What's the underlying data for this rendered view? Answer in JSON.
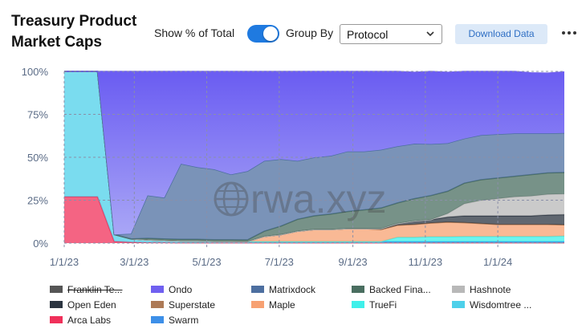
{
  "header": {
    "title": "Treasury Product Market Caps",
    "toggle_label": "Show % of Total",
    "toggle_on": true,
    "group_label": "Group By",
    "group_value": "Protocol",
    "download_label": "Download Data",
    "more_icon": "more-horizontal-icon",
    "chevron_icon": "chevron-down-icon"
  },
  "colors": {
    "accent": "#1f7ae0",
    "ondo": "#7060f0",
    "matrixdock": "#4d6fa0",
    "backed": "#4a6e60",
    "hashnote": "#b8b8b8",
    "open_eden": "#2b3440",
    "superstate": "#ad7a56",
    "maple": "#f7a172",
    "truefi": "#3ff0ea",
    "wisdomtree": "#4dd0ea",
    "arca": "#f0305a",
    "swarm": "#3d8fe8",
    "franklin": "#555555"
  },
  "chart_data": {
    "type": "area",
    "stacked": true,
    "percent": true,
    "x": [
      "1/1/23",
      "1/15/23",
      "1/29/23",
      "2/12/23",
      "2/26/23",
      "3/12/23",
      "3/26/23",
      "4/9/23",
      "4/23/23",
      "5/7/23",
      "5/21/23",
      "6/4/23",
      "6/18/23",
      "7/2/23",
      "7/16/23",
      "7/30/23",
      "8/13/23",
      "8/27/23",
      "9/10/23",
      "9/24/23",
      "10/8/23",
      "10/22/23",
      "11/5/23",
      "11/19/23",
      "12/3/23",
      "12/17/23",
      "12/31/23",
      "1/14/24",
      "1/28/24",
      "2/11/24",
      "2/25/24"
    ],
    "xticks": [
      "1/1/23",
      "3/1/23",
      "5/1/23",
      "7/1/23",
      "9/1/23",
      "11/1/23",
      "1/1/24"
    ],
    "yticks": [
      "0%",
      "25%",
      "50%",
      "75%",
      "100%"
    ],
    "ylim": [
      0,
      100
    ],
    "series": [
      {
        "name": "Arca Labs",
        "key": "arca",
        "values": [
          27,
          27,
          27,
          1,
          0.5,
          0.3,
          0.3,
          0.2,
          0.2,
          0.2,
          0.2,
          0.2,
          0.2,
          0.2,
          0.2,
          0.2,
          0.2,
          0.2,
          0.2,
          0.2,
          0.2,
          0.2,
          0.2,
          0.2,
          0.2,
          0.2,
          0.2,
          0.2,
          0.2,
          0.2,
          0.2
        ]
      },
      {
        "name": "Wisdomtree ...",
        "key": "wisdomtree",
        "values": [
          73,
          73,
          73,
          4,
          2,
          1.5,
          1.2,
          1,
          1,
          0.8,
          0.8,
          0.7,
          0.7,
          0.7,
          0.7,
          0.7,
          0.7,
          0.7,
          0.7,
          0.7,
          0.7,
          0.7,
          0.7,
          0.7,
          0.7,
          0.7,
          0.7,
          0.7,
          0.7,
          0.7,
          0.7
        ]
      },
      {
        "name": "Swarm",
        "key": "swarm",
        "values": [
          0,
          0,
          0,
          0,
          0,
          0,
          0,
          0,
          0,
          0,
          0,
          0,
          0,
          0,
          0,
          0,
          0,
          0,
          0,
          0,
          0,
          0,
          0,
          0,
          0,
          0,
          0,
          0,
          0,
          0,
          0
        ]
      },
      {
        "name": "TrueFi",
        "key": "truefi",
        "values": [
          0,
          0,
          0,
          0,
          0,
          0,
          0,
          0,
          0,
          0,
          0,
          0,
          0,
          0,
          0,
          0,
          0,
          0,
          0,
          0,
          2.5,
          2.5,
          2.8,
          2.8,
          3,
          3,
          3,
          3,
          3,
          3,
          3.2
        ]
      },
      {
        "name": "Maple",
        "key": "maple",
        "values": [
          0,
          0,
          0,
          0,
          0,
          0,
          0,
          0,
          0,
          0,
          0,
          0,
          3,
          4,
          6,
          7,
          7,
          7.5,
          7.5,
          7,
          7,
          7.5,
          8,
          8.5,
          8,
          7.5,
          7,
          7,
          7,
          7,
          6.5
        ]
      },
      {
        "name": "Superstate",
        "key": "superstate",
        "values": [
          0,
          0,
          0,
          0,
          0,
          0,
          0,
          0,
          0,
          0,
          0,
          0,
          0,
          0,
          0,
          0,
          0,
          0,
          0,
          0,
          0,
          0,
          0,
          0,
          0,
          0,
          0,
          0,
          0,
          0,
          0
        ]
      },
      {
        "name": "Open Eden",
        "key": "open_eden",
        "values": [
          0,
          0,
          0,
          0,
          0,
          0,
          0,
          0,
          0,
          0,
          0,
          0,
          0,
          0,
          0,
          0,
          0,
          0,
          0,
          0.5,
          1,
          2,
          2,
          3,
          4,
          4.5,
          5,
          5,
          5,
          5.5,
          6
        ]
      },
      {
        "name": "Hashnote",
        "key": "hashnote",
        "values": [
          0,
          0,
          0,
          0,
          0,
          0,
          0,
          0,
          0,
          0,
          0,
          0,
          0,
          0,
          0,
          0,
          0,
          0,
          0,
          0,
          0,
          0,
          0,
          2,
          7,
          9,
          10,
          11,
          11.5,
          12,
          12
        ]
      },
      {
        "name": "Backed Fina...",
        "key": "backed",
        "values": [
          0,
          0,
          0,
          0,
          0,
          1,
          1,
          1,
          1,
          1,
          1,
          1,
          3,
          5,
          7,
          8,
          9,
          10,
          11,
          12,
          12,
          13,
          14,
          13,
          12,
          12,
          12,
          12,
          12.5,
          12.5,
          12.5
        ]
      },
      {
        "name": "Matrixdock",
        "key": "matrixdock",
        "values": [
          0,
          0,
          0,
          0,
          3,
          25,
          24,
          44,
          42,
          41,
          38,
          40,
          41,
          39,
          34,
          34,
          34,
          35,
          34,
          34,
          33,
          32,
          30,
          28,
          26,
          26,
          25.5,
          25,
          24,
          23,
          23
        ]
      },
      {
        "name": "Ondo",
        "key": "ondo",
        "values": [
          0,
          0,
          0,
          95,
          94.5,
          72.2,
          73.5,
          53.8,
          55.8,
          57,
          60,
          58.1,
          52.1,
          51.1,
          52.1,
          50.1,
          49.1,
          46.6,
          46.6,
          45.6,
          43.6,
          41.6,
          42.3,
          41.3,
          39.1,
          37.1,
          36.6,
          36.1,
          35.3,
          35.1,
          35.6
        ]
      },
      {
        "name": "Franklin Te...",
        "key": "franklin",
        "values": [
          0,
          0,
          0,
          0,
          0,
          0,
          0,
          0,
          0,
          0,
          0,
          0,
          0,
          0,
          0,
          0,
          0,
          0,
          0,
          0,
          0,
          0,
          0,
          0,
          0,
          0,
          0,
          0,
          0,
          0,
          0
        ],
        "hidden": true
      }
    ],
    "legend": [
      [
        {
          "name": "Franklin Te...",
          "key": "franklin",
          "struck": true
        },
        {
          "name": "Ondo",
          "key": "ondo"
        },
        {
          "name": "Matrixdock",
          "key": "matrixdock"
        },
        {
          "name": "Backed Fina...",
          "key": "backed"
        },
        {
          "name": "Hashnote",
          "key": "hashnote"
        }
      ],
      [
        {
          "name": "Open Eden",
          "key": "open_eden"
        },
        {
          "name": "Superstate",
          "key": "superstate"
        },
        {
          "name": "Maple",
          "key": "maple"
        },
        {
          "name": "TrueFi",
          "key": "truefi"
        },
        {
          "name": "Wisdomtree ...",
          "key": "wisdomtree"
        }
      ],
      [
        {
          "name": "Arca Labs",
          "key": "arca"
        },
        {
          "name": "Swarm",
          "key": "swarm"
        }
      ]
    ],
    "watermark": "rwa.xyz"
  }
}
